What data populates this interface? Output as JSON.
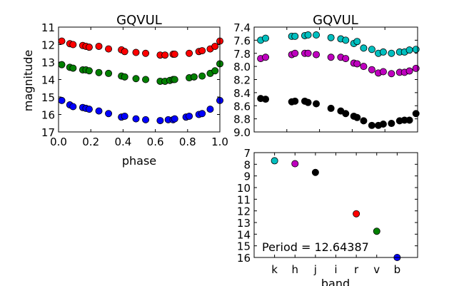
{
  "chart_data": [
    {
      "id": "left",
      "type": "scatter",
      "title": "GQVUL",
      "xlabel": "phase",
      "ylabel": "magnitude",
      "xlim": [
        0,
        1
      ],
      "ylim": [
        11,
        17
      ],
      "y_inverted": true,
      "xticks": [
        "0.0",
        "0.2",
        "0.4",
        "0.6",
        "0.8",
        "1.0"
      ],
      "yticks": [
        "11",
        "12",
        "13",
        "14",
        "15",
        "16",
        "17"
      ],
      "series": [
        {
          "name": "red",
          "color": "#ff0000",
          "x": [
            0.02,
            0.07,
            0.09,
            0.15,
            0.17,
            0.19,
            0.25,
            0.31,
            0.39,
            0.41,
            0.48,
            0.54,
            0.63,
            0.66,
            0.71,
            0.72,
            0.81,
            0.87,
            0.89,
            0.94,
            0.97,
            1.0
          ],
          "y": [
            11.8,
            11.95,
            12.0,
            12.05,
            12.1,
            12.15,
            12.1,
            12.25,
            12.3,
            12.4,
            12.45,
            12.5,
            12.6,
            12.6,
            12.55,
            12.55,
            12.5,
            12.4,
            12.35,
            12.25,
            12.1,
            11.8
          ]
        },
        {
          "name": "green",
          "color": "#008000",
          "x": [
            0.02,
            0.07,
            0.09,
            0.15,
            0.17,
            0.19,
            0.25,
            0.31,
            0.39,
            0.41,
            0.48,
            0.54,
            0.63,
            0.66,
            0.69,
            0.71,
            0.72,
            0.81,
            0.84,
            0.89,
            0.94,
            0.97,
            1.0
          ],
          "y": [
            13.15,
            13.3,
            13.35,
            13.45,
            13.45,
            13.5,
            13.6,
            13.65,
            13.8,
            13.85,
            13.95,
            14.0,
            14.1,
            14.1,
            14.05,
            14.0,
            14.0,
            13.9,
            13.85,
            13.8,
            13.65,
            13.5,
            13.1
          ]
        },
        {
          "name": "blue",
          "color": "#0000ff",
          "x": [
            0.02,
            0.07,
            0.09,
            0.15,
            0.17,
            0.19,
            0.25,
            0.31,
            0.39,
            0.41,
            0.48,
            0.54,
            0.63,
            0.68,
            0.71,
            0.72,
            0.79,
            0.81,
            0.87,
            0.89,
            0.94,
            1.0
          ],
          "y": [
            15.2,
            15.45,
            15.55,
            15.6,
            15.65,
            15.7,
            15.8,
            15.95,
            16.15,
            16.1,
            16.25,
            16.3,
            16.35,
            16.3,
            16.3,
            16.25,
            16.15,
            16.1,
            16.0,
            15.95,
            15.7,
            15.2
          ]
        }
      ]
    },
    {
      "id": "right-top",
      "type": "scatter",
      "title": "GQVUL",
      "xlabel": "",
      "ylabel": "",
      "xlim": [
        0,
        1
      ],
      "ylim": [
        7.4,
        9.0
      ],
      "y_inverted": true,
      "xticks": [],
      "yticks": [
        "7.4",
        "7.6",
        "7.8",
        "8.0",
        "8.2",
        "8.4",
        "8.6",
        "8.8",
        "9.0"
      ],
      "series": [
        {
          "name": "cyan",
          "color": "#00bfbf",
          "x": [
            0.04,
            0.07,
            0.23,
            0.25,
            0.31,
            0.33,
            0.38,
            0.47,
            0.53,
            0.56,
            0.61,
            0.63,
            0.67,
            0.72,
            0.76,
            0.79,
            0.84,
            0.89,
            0.92,
            0.95,
            0.99
          ],
          "y": [
            7.6,
            7.57,
            7.54,
            7.54,
            7.53,
            7.52,
            7.52,
            7.56,
            7.58,
            7.6,
            7.65,
            7.62,
            7.72,
            7.74,
            7.8,
            7.78,
            7.8,
            7.78,
            7.78,
            7.75,
            7.74
          ]
        },
        {
          "name": "magenta",
          "color": "#bf00bf",
          "x": [
            0.04,
            0.07,
            0.23,
            0.25,
            0.31,
            0.33,
            0.38,
            0.47,
            0.53,
            0.56,
            0.61,
            0.63,
            0.67,
            0.72,
            0.76,
            0.79,
            0.84,
            0.89,
            0.92,
            0.95,
            0.99
          ],
          "y": [
            7.88,
            7.86,
            7.82,
            7.8,
            7.8,
            7.8,
            7.82,
            7.86,
            7.86,
            7.88,
            7.95,
            7.96,
            8.0,
            8.05,
            8.1,
            8.08,
            8.11,
            8.09,
            8.09,
            8.07,
            8.03
          ]
        },
        {
          "name": "black",
          "color": "#000000",
          "x": [
            0.04,
            0.07,
            0.23,
            0.25,
            0.31,
            0.33,
            0.38,
            0.47,
            0.53,
            0.56,
            0.61,
            0.63,
            0.67,
            0.72,
            0.76,
            0.79,
            0.84,
            0.89,
            0.92,
            0.95,
            0.99
          ],
          "y": [
            8.49,
            8.5,
            8.54,
            8.53,
            8.53,
            8.55,
            8.57,
            8.64,
            8.68,
            8.72,
            8.76,
            8.78,
            8.83,
            8.9,
            8.9,
            8.88,
            8.87,
            8.83,
            8.82,
            8.82,
            8.72
          ]
        }
      ]
    },
    {
      "id": "right-bottom",
      "type": "scatter",
      "title": "",
      "xlabel": "band",
      "ylabel": "",
      "ylim": [
        7,
        16
      ],
      "y_inverted": true,
      "categories": [
        "k",
        "h",
        "j",
        "i",
        "r",
        "v",
        "b"
      ],
      "yticks": [
        "7",
        "8",
        "9",
        "10",
        "11",
        "12",
        "13",
        "14",
        "15",
        "16"
      ],
      "annotation": "Period = 12.64387",
      "points": [
        {
          "band": "k",
          "value": 7.7,
          "color": "#00bfbf"
        },
        {
          "band": "h",
          "value": 7.95,
          "color": "#bf00bf"
        },
        {
          "band": "j",
          "value": 8.7,
          "color": "#000000"
        },
        {
          "band": "r",
          "value": 12.25,
          "color": "#ff0000"
        },
        {
          "band": "v",
          "value": 13.75,
          "color": "#008000"
        },
        {
          "band": "b",
          "value": 16.0,
          "color": "#0000ff"
        }
      ]
    }
  ]
}
